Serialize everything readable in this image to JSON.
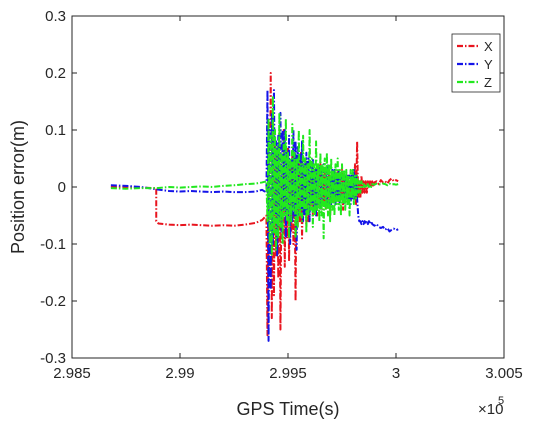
{
  "chart_data": {
    "type": "line",
    "xlabel": "GPS Time(s)",
    "ylabel": "Position error(m)",
    "x_multiplier_label": "×10",
    "x_multiplier_exponent": "5",
    "xlim": [
      2.985,
      3.005
    ],
    "ylim": [
      -0.3,
      0.3
    ],
    "x_ticks": [
      2.985,
      2.99,
      2.995,
      3.0,
      3.005
    ],
    "x_tick_labels": [
      "2.985",
      "2.99",
      "2.995",
      "3",
      "3.005"
    ],
    "y_ticks": [
      -0.3,
      -0.2,
      -0.1,
      0,
      0.1,
      0.2,
      0.3
    ],
    "y_tick_labels": [
      "-0.3",
      "-0.2",
      "-0.1",
      "0",
      "0.1",
      "0.2",
      "0.3"
    ],
    "grid": false,
    "legend_position": "top-right",
    "series": [
      {
        "name": "X",
        "color": "#e8141e",
        "x": [
          2.9868,
          2.9875,
          2.9882,
          2.9889,
          2.9889,
          2.989,
          2.9895,
          2.99,
          2.9905,
          2.991,
          2.9915,
          2.992,
          2.9925,
          2.993,
          2.9935,
          2.9938,
          2.994,
          2.99405,
          2.9941,
          2.99415,
          2.9942,
          2.99425,
          2.9943,
          2.99435,
          2.9944,
          2.99445,
          2.9945,
          2.99455,
          2.9946,
          2.99465,
          2.9947,
          2.99475,
          2.9948,
          2.99485,
          2.9949,
          2.99495,
          2.995,
          2.99505,
          2.9951,
          2.99515,
          2.9952,
          2.99525,
          2.9953,
          2.99535,
          2.9954,
          2.99545,
          2.9955,
          2.99555,
          2.9956,
          2.99565,
          2.9957,
          2.99575,
          2.9958,
          2.99585,
          2.9959,
          2.99595,
          2.996,
          2.99605,
          2.9961,
          2.99615,
          2.9962,
          2.99625,
          2.9963,
          2.99635,
          2.9964,
          2.99645,
          2.9965,
          2.99655,
          2.9966,
          2.99665,
          2.9967,
          2.99675,
          2.9968,
          2.99685,
          2.9969,
          2.99695,
          2.997,
          2.99705,
          2.9971,
          2.99715,
          2.9972,
          2.99725,
          2.9973,
          2.99735,
          2.9974,
          2.99745,
          2.9975,
          2.99755,
          2.9976,
          2.99765,
          2.9977,
          2.99775,
          2.9978,
          2.99785,
          2.9979,
          2.99795,
          2.998,
          2.99805,
          2.9981,
          2.99815,
          2.9982,
          2.99825,
          2.9983,
          2.99835,
          2.9984,
          2.99845,
          2.9985,
          2.99855,
          2.9986,
          2.99865,
          2.9987,
          2.99875,
          2.9988,
          2.99885,
          2.9989,
          2.99895,
          2.999,
          2.9991,
          2.9992,
          2.9993,
          2.9994,
          2.9995,
          2.9996,
          2.9997,
          2.9998,
          2.9999,
          3.0,
          3.0001
        ],
        "y": [
          0.0,
          0.0,
          -0.001,
          -0.002,
          -0.06,
          -0.064,
          -0.066,
          -0.067,
          -0.066,
          -0.067,
          -0.068,
          -0.067,
          -0.068,
          -0.066,
          -0.063,
          -0.058,
          -0.05,
          -0.26,
          0.05,
          -0.15,
          0.2,
          -0.23,
          0.12,
          -0.19,
          0.08,
          -0.12,
          0.06,
          -0.16,
          0.1,
          -0.25,
          0.02,
          -0.08,
          0.1,
          -0.14,
          0.03,
          -0.09,
          0.07,
          -0.13,
          0.04,
          -0.08,
          0.06,
          -0.1,
          0.03,
          -0.2,
          0.05,
          -0.07,
          0.04,
          -0.06,
          0.06,
          -0.09,
          0.02,
          -0.05,
          0.04,
          -0.07,
          0.03,
          -0.06,
          0.02,
          -0.04,
          0.03,
          -0.05,
          0.01,
          -0.04,
          0.03,
          -0.05,
          0.02,
          -0.03,
          0.04,
          -0.04,
          0.02,
          -0.03,
          0.03,
          -0.04,
          0.02,
          -0.03,
          0.03,
          -0.05,
          0.02,
          -0.02,
          0.03,
          -0.03,
          0.02,
          -0.02,
          0.03,
          -0.03,
          0.02,
          -0.02,
          0.03,
          -0.04,
          0.02,
          -0.02,
          0.02,
          -0.03,
          0.02,
          -0.02,
          0.01,
          -0.02,
          0.02,
          -0.02,
          0.04,
          -0.03,
          0.08,
          -0.02,
          0.01,
          -0.02,
          0.02,
          -0.01,
          0.01,
          -0.01,
          0.01,
          -0.01,
          0.01,
          0.0,
          0.01,
          0.0,
          0.01,
          0.0,
          0.008,
          0.01,
          0.005,
          0.012,
          0.008,
          0.01,
          0.006,
          0.012,
          0.015,
          0.01,
          0.012,
          0.01
        ]
      },
      {
        "name": "Y",
        "color": "#1414e8",
        "x": [
          2.9868,
          2.9875,
          2.9882,
          2.9889,
          2.9895,
          2.99,
          2.9905,
          2.991,
          2.9915,
          2.992,
          2.9925,
          2.993,
          2.9935,
          2.9938,
          2.994,
          2.99405,
          2.9941,
          2.99415,
          2.9942,
          2.99425,
          2.9943,
          2.99435,
          2.9944,
          2.99445,
          2.9945,
          2.99455,
          2.9946,
          2.99465,
          2.9947,
          2.99475,
          2.9948,
          2.99485,
          2.9949,
          2.99495,
          2.995,
          2.99505,
          2.9951,
          2.99515,
          2.9952,
          2.99525,
          2.9953,
          2.99535,
          2.9954,
          2.99545,
          2.9955,
          2.99555,
          2.9956,
          2.99565,
          2.9957,
          2.99575,
          2.9958,
          2.99585,
          2.9959,
          2.99595,
          2.996,
          2.99605,
          2.9961,
          2.99615,
          2.9962,
          2.99625,
          2.9963,
          2.99635,
          2.9964,
          2.99645,
          2.9965,
          2.99655,
          2.9966,
          2.99665,
          2.9967,
          2.99675,
          2.9968,
          2.99685,
          2.9969,
          2.99695,
          2.997,
          2.99705,
          2.9971,
          2.99715,
          2.9972,
          2.99725,
          2.9973,
          2.99735,
          2.9974,
          2.99745,
          2.9975,
          2.99755,
          2.9976,
          2.99765,
          2.9977,
          2.99775,
          2.9978,
          2.99785,
          2.9979,
          2.99795,
          2.998,
          2.99805,
          2.9981,
          2.99815,
          2.9982,
          2.99825,
          2.9983,
          2.99835,
          2.9984,
          2.99845,
          2.9985,
          2.99855,
          2.9986,
          2.99865,
          2.9987,
          2.99875,
          2.9988,
          2.99885,
          2.9989,
          2.999,
          2.9991,
          2.9992,
          2.9993,
          2.9994,
          2.9995,
          2.9996,
          2.9997,
          2.9998,
          2.9999,
          3.0,
          3.0001
        ],
        "y": [
          0.003,
          0.002,
          0.0,
          -0.004,
          -0.007,
          -0.008,
          -0.007,
          -0.008,
          -0.009,
          -0.008,
          -0.009,
          -0.009,
          -0.008,
          -0.005,
          -0.01,
          0.17,
          -0.27,
          0.1,
          -0.18,
          0.13,
          -0.1,
          0.17,
          -0.05,
          0.08,
          -0.12,
          0.09,
          -0.06,
          0.13,
          -0.08,
          0.1,
          -0.04,
          0.1,
          -0.09,
          0.06,
          -0.05,
          0.09,
          -0.1,
          0.05,
          -0.06,
          0.1,
          -0.05,
          0.08,
          -0.11,
          0.07,
          -0.05,
          0.06,
          -0.04,
          0.08,
          -0.06,
          0.04,
          -0.05,
          0.06,
          -0.04,
          0.05,
          -0.06,
          0.04,
          -0.03,
          0.05,
          -0.04,
          0.03,
          -0.05,
          0.04,
          -0.03,
          0.04,
          -0.04,
          0.03,
          -0.03,
          0.04,
          -0.02,
          0.03,
          -0.03,
          0.04,
          -0.03,
          0.02,
          -0.03,
          0.03,
          -0.02,
          0.03,
          -0.03,
          0.02,
          -0.02,
          0.03,
          -0.03,
          0.02,
          -0.02,
          0.02,
          -0.03,
          0.02,
          -0.02,
          0.02,
          -0.02,
          0.02,
          -0.03,
          0.02,
          -0.02,
          0.03,
          -0.02,
          0.02,
          -0.02,
          -0.05,
          -0.06,
          -0.06,
          -0.065,
          -0.06,
          -0.065,
          -0.06,
          -0.065,
          -0.06,
          -0.065,
          -0.06,
          -0.065,
          -0.06,
          -0.065,
          -0.068,
          -0.065,
          -0.07,
          -0.072,
          -0.07,
          -0.075,
          -0.072,
          -0.078,
          -0.075,
          -0.073,
          -0.076,
          -0.074
        ]
      },
      {
        "name": "Z",
        "color": "#22e81e",
        "x": [
          2.9868,
          2.9875,
          2.9882,
          2.9889,
          2.9895,
          2.99,
          2.9905,
          2.991,
          2.9915,
          2.992,
          2.9925,
          2.993,
          2.9935,
          2.9938,
          2.994,
          2.99405,
          2.9941,
          2.99415,
          2.9942,
          2.99425,
          2.9943,
          2.99435,
          2.9944,
          2.99445,
          2.9945,
          2.99455,
          2.9946,
          2.99465,
          2.9947,
          2.99475,
          2.9948,
          2.99485,
          2.9949,
          2.99495,
          2.995,
          2.99505,
          2.9951,
          2.99515,
          2.9952,
          2.99525,
          2.9953,
          2.99535,
          2.9954,
          2.99545,
          2.9955,
          2.99555,
          2.9956,
          2.99565,
          2.9957,
          2.99575,
          2.9958,
          2.99585,
          2.9959,
          2.99595,
          2.996,
          2.99605,
          2.9961,
          2.99615,
          2.9962,
          2.99625,
          2.9963,
          2.99635,
          2.9964,
          2.99645,
          2.9965,
          2.99655,
          2.9966,
          2.99665,
          2.9967,
          2.99675,
          2.9968,
          2.99685,
          2.9969,
          2.99695,
          2.997,
          2.99705,
          2.9971,
          2.99715,
          2.9972,
          2.99725,
          2.9973,
          2.99735,
          2.9974,
          2.99745,
          2.9975,
          2.99755,
          2.9976,
          2.99765,
          2.9977,
          2.99775,
          2.9978,
          2.99785,
          2.9979,
          2.99795,
          2.998,
          2.99805,
          2.9981,
          2.99815,
          2.9982,
          2.99825,
          2.9983,
          2.99835,
          2.9984,
          2.99845,
          2.9985,
          2.99855,
          2.9986,
          2.99865,
          2.9987,
          2.99875,
          2.9988,
          2.99885,
          2.9989,
          2.999,
          2.9991,
          2.9992,
          2.9993,
          2.9994,
          2.9995,
          2.9996,
          2.9997,
          2.9998,
          2.9999,
          3.0,
          3.0001
        ],
        "y": [
          -0.002,
          -0.003,
          -0.002,
          -0.002,
          0.0,
          -0.001,
          0.0,
          0.001,
          0.0,
          0.002,
          0.003,
          0.005,
          0.006,
          0.008,
          0.01,
          -0.06,
          0.12,
          -0.1,
          0.09,
          -0.12,
          0.16,
          -0.08,
          0.1,
          -0.11,
          0.07,
          -0.09,
          0.13,
          -0.07,
          0.06,
          -0.1,
          0.08,
          -0.05,
          0.12,
          -0.06,
          0.06,
          -0.09,
          0.05,
          -0.06,
          0.11,
          -0.04,
          0.06,
          -0.09,
          0.05,
          -0.07,
          0.1,
          -0.05,
          0.04,
          -0.06,
          0.09,
          -0.04,
          0.05,
          -0.08,
          0.04,
          -0.05,
          0.1,
          -0.04,
          0.05,
          -0.07,
          0.04,
          -0.05,
          0.08,
          -0.04,
          0.04,
          -0.06,
          0.06,
          -0.05,
          0.04,
          -0.09,
          0.05,
          -0.04,
          0.06,
          -0.05,
          0.04,
          -0.06,
          0.05,
          -0.04,
          0.03,
          -0.05,
          0.04,
          -0.03,
          0.05,
          -0.04,
          0.03,
          -0.05,
          0.04,
          -0.03,
          0.03,
          -0.04,
          0.03,
          -0.03,
          0.02,
          -0.05,
          0.03,
          -0.02,
          0.03,
          -0.03,
          0.02,
          -0.02,
          0.02,
          -0.01,
          0.01,
          -0.01,
          0.01,
          0.0,
          0.005,
          0.0,
          0.005,
          0.0,
          0.005,
          0.0,
          0.004,
          0.0,
          0.005,
          0.004,
          0.006,
          0.005,
          0.004,
          0.006,
          0.005,
          0.003,
          0.006,
          0.004,
          0.005,
          0.004,
          0.005
        ]
      }
    ]
  }
}
